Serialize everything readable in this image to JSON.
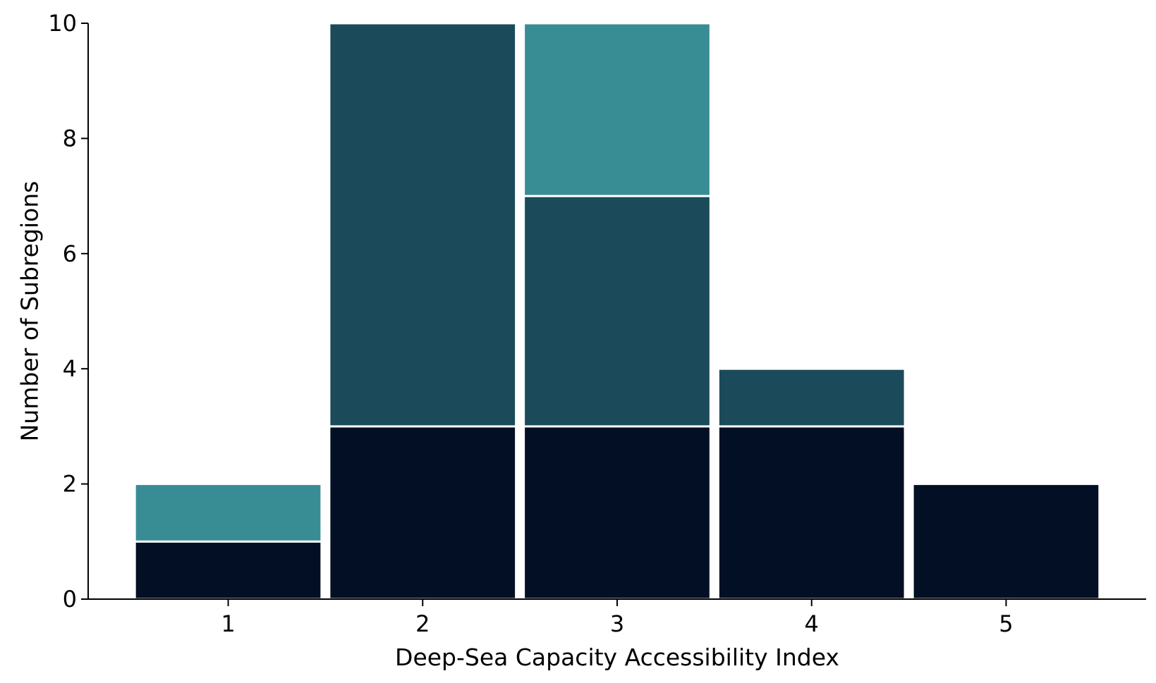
{
  "chart_data": {
    "type": "bar",
    "stacked": true,
    "title": "",
    "xlabel": "Deep-Sea Capacity Accessibility Index",
    "ylabel": "Number of Subregions",
    "categories": [
      "1",
      "2",
      "3",
      "4",
      "5"
    ],
    "series": [
      {
        "color": "#020f24",
        "values": [
          1,
          3,
          3,
          3,
          2
        ]
      },
      {
        "color": "#1b4a5a",
        "values": [
          0,
          7,
          4,
          1,
          0
        ]
      },
      {
        "color": "#388d95",
        "values": [
          1,
          0,
          3,
          0,
          0
        ]
      }
    ],
    "ylim": [
      0,
      10
    ],
    "yticks": [
      0,
      2,
      4,
      6,
      8,
      10
    ],
    "grid": false,
    "legend": "none"
  }
}
